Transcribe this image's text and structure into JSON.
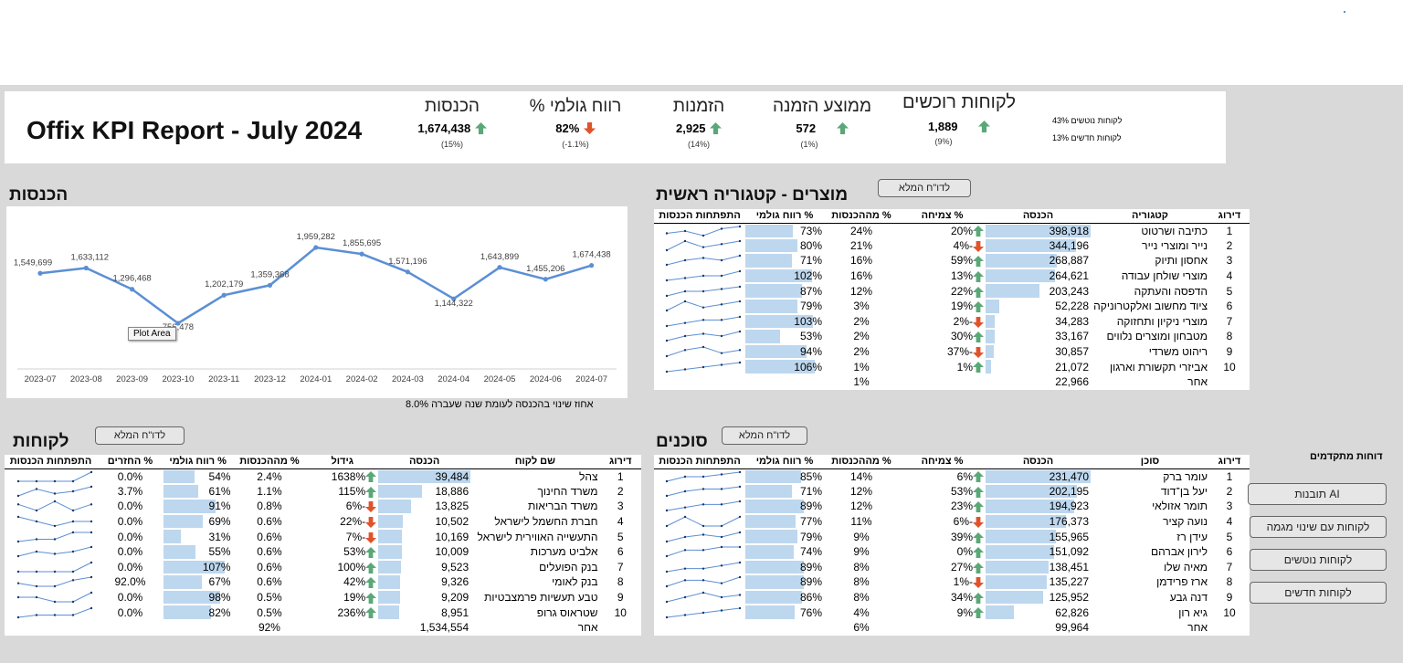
{
  "header": {
    "title": "Offix KPI Report - July 2024",
    "kpis": [
      {
        "title": "הכנסות",
        "value": "1,674,438",
        "sub": "(15%)",
        "trend": "up"
      },
      {
        "title": "% רווח גולמי",
        "value": "82%",
        "sub": "(-1.1%)",
        "trend": "down"
      },
      {
        "title": "הזמנות",
        "value": "2,925",
        "sub": "(14%)",
        "trend": "up"
      },
      {
        "title": "ממוצע הזמנה",
        "value": "572",
        "sub": "(1%)",
        "trend": "up"
      },
      {
        "title": "לקוחות רוכשים",
        "value": "1,889",
        "sub": "(9%)",
        "trend": "up"
      }
    ],
    "churn_label": "לקוחות נוטשים 43%",
    "new_label": "לקוחות חדשים 13%"
  },
  "revenue_chart": {
    "title": "הכנסות",
    "tooltip": "Plot Area",
    "footnote": "אחוז שינוי בהכנסה לעומת שנה שעברה 8.0%"
  },
  "chart_data": {
    "type": "line",
    "categories": [
      "2023-07",
      "2023-08",
      "2023-09",
      "2023-10",
      "2023-11",
      "2023-12",
      "2024-01",
      "2024-02",
      "2024-03",
      "2024-04",
      "2024-05",
      "2024-06",
      "2024-07"
    ],
    "values": [
      1549699,
      1633112,
      1296468,
      756478,
      1202179,
      1359368,
      1959282,
      1855695,
      1571196,
      1144322,
      1643899,
      1455206,
      1674438
    ],
    "data_labels": [
      "1,549,699",
      "1,633,112",
      "1,296,468",
      "756,478",
      "1,202,179",
      "1,359,368",
      "1,959,282",
      "1,855,695",
      "1,571,196",
      "1,144,322",
      "1,643,899",
      "1,455,206",
      "1,674,438"
    ],
    "line_color": "#5b8fd4",
    "grid": false
  },
  "products": {
    "title": "מוצרים - קטגוריה ראשית",
    "button": "לדו\"ח המלא",
    "headers": [
      "דירוג",
      "קטגוריה",
      "הכנסה",
      "% צמיחה",
      "% מההכנסות",
      "% רווח גולמי",
      "התפתחות הכנסות"
    ],
    "rows": [
      {
        "rank": "1",
        "name": "כתיבה ושרטוט",
        "rev": "398,918",
        "rev_n": 398918,
        "growth": "20%",
        "dir": "up",
        "share": "24%",
        "margin": "73%",
        "margin_n": 73,
        "spark": [
          3,
          4,
          2,
          5,
          6
        ]
      },
      {
        "rank": "2",
        "name": "נייר ומוצרי נייר",
        "rev": "344,196",
        "rev_n": 344196,
        "growth": "-4%",
        "dir": "down",
        "share": "21%",
        "margin": "80%",
        "margin_n": 80,
        "spark": [
          3,
          6,
          4,
          5,
          6
        ]
      },
      {
        "rank": "3",
        "name": "אחסון ותיוק",
        "rev": "268,887",
        "rev_n": 268887,
        "growth": "59%",
        "dir": "up",
        "share": "16%",
        "margin": "71%",
        "margin_n": 71,
        "spark": [
          2,
          4,
          5,
          4,
          6
        ]
      },
      {
        "rank": "4",
        "name": "מוצרי שולחן עבודה",
        "rev": "264,621",
        "rev_n": 264621,
        "growth": "13%",
        "dir": "up",
        "share": "16%",
        "margin": "102%",
        "margin_n": 102,
        "spark": [
          2,
          3,
          4,
          4,
          6
        ]
      },
      {
        "rank": "5",
        "name": "הדפסה והעתקה",
        "rev": "203,243",
        "rev_n": 203243,
        "growth": "22%",
        "dir": "up",
        "share": "12%",
        "margin": "87%",
        "margin_n": 87,
        "spark": [
          2,
          4,
          4,
          5,
          6
        ]
      },
      {
        "rank": "6",
        "name": "ציוד מחשוב ואלקטרוניקה",
        "rev": "52,228",
        "rev_n": 52228,
        "growth": "19%",
        "dir": "up",
        "share": "3%",
        "margin": "79%",
        "margin_n": 79,
        "spark": [
          3,
          6,
          4,
          5,
          6
        ]
      },
      {
        "rank": "7",
        "name": "מוצרי ניקיון ותחזוקה",
        "rev": "34,283",
        "rev_n": 34283,
        "growth": "-2%",
        "dir": "down",
        "share": "2%",
        "margin": "103%",
        "margin_n": 103,
        "spark": [
          3,
          4,
          5,
          5,
          6
        ]
      },
      {
        "rank": "8",
        "name": "מטבחון ומוצרים נלווים",
        "rev": "33,167",
        "rev_n": 33167,
        "growth": "30%",
        "dir": "up",
        "share": "2%",
        "margin": "53%",
        "margin_n": 53,
        "spark": [
          2,
          4,
          5,
          4,
          6
        ]
      },
      {
        "rank": "9",
        "name": "ריהוט משרדי",
        "rev": "30,857",
        "rev_n": 30857,
        "growth": "-37%",
        "dir": "down",
        "share": "2%",
        "margin": "94%",
        "margin_n": 94,
        "spark": [
          3,
          5,
          6,
          4,
          5
        ]
      },
      {
        "rank": "10",
        "name": "אביזרי תקשורת וארגון",
        "rev": "21,072",
        "rev_n": 21072,
        "growth": "1%",
        "dir": "up",
        "share": "1%",
        "margin": "106%",
        "margin_n": 106,
        "spark": [
          2,
          3,
          4,
          5,
          6
        ]
      }
    ],
    "other": {
      "name": "אחר",
      "rev": "22,966",
      "share": "1%"
    }
  },
  "customers": {
    "title": "לקוחות",
    "button": "לדו\"ח המלא",
    "headers": [
      "דירוג",
      "שם לקוח",
      "הכנסה",
      "גידול",
      "% מההכנסות",
      "% רווח גולמי",
      "% החזרים",
      "התפתחות הכנסות"
    ],
    "rows": [
      {
        "rank": "1",
        "name": "צהל",
        "rev": "39,484",
        "rev_n": 39484,
        "growth": "1638%",
        "dir": "up",
        "share": "2.4%",
        "margin": "54%",
        "margin_n": 54,
        "returns": "0.0%",
        "spark": [
          3,
          3,
          3,
          3,
          6
        ]
      },
      {
        "rank": "2",
        "name": "משרד החינוך",
        "rev": "18,886",
        "rev_n": 18886,
        "growth": "115%",
        "dir": "up",
        "share": "1.1%",
        "margin": "61%",
        "margin_n": 61,
        "returns": "3.7%",
        "spark": [
          2,
          5,
          3,
          4,
          6
        ]
      },
      {
        "rank": "3",
        "name": "משרד הבריאות",
        "rev": "13,825",
        "rev_n": 13825,
        "growth": "-6%",
        "dir": "down",
        "share": "0.8%",
        "margin": "91%",
        "margin_n": 91,
        "returns": "0.0%",
        "spark": [
          5,
          3,
          6,
          3,
          5
        ]
      },
      {
        "rank": "4",
        "name": "חברת החשמל לישראל",
        "rev": "10,502",
        "rev_n": 10502,
        "growth": "-22%",
        "dir": "down",
        "share": "0.6%",
        "margin": "69%",
        "margin_n": 69,
        "returns": "0.0%",
        "spark": [
          5,
          4,
          3,
          4,
          4
        ]
      },
      {
        "rank": "5",
        "name": "התעשייה האווירית לישראל",
        "rev": "10,169",
        "rev_n": 10169,
        "growth": "-7%",
        "dir": "down",
        "share": "0.6%",
        "margin": "31%",
        "margin_n": 31,
        "returns": "0.0%",
        "spark": [
          2,
          3,
          3,
          6,
          6
        ]
      },
      {
        "rank": "6",
        "name": "אלביט מערכות",
        "rev": "10,009",
        "rev_n": 10009,
        "growth": "53%",
        "dir": "up",
        "share": "0.6%",
        "margin": "55%",
        "margin_n": 55,
        "returns": "0.0%",
        "spark": [
          2,
          4,
          3,
          4,
          6
        ]
      },
      {
        "rank": "7",
        "name": "בנק הפועלים",
        "rev": "9,523",
        "rev_n": 9523,
        "growth": "100%",
        "dir": "up",
        "share": "0.6%",
        "margin": "107%",
        "margin_n": 107,
        "returns": "0.0%",
        "spark": [
          3,
          3,
          3,
          3,
          6
        ]
      },
      {
        "rank": "8",
        "name": "בנק לאומי",
        "rev": "9,326",
        "rev_n": 9326,
        "growth": "42%",
        "dir": "up",
        "share": "0.6%",
        "margin": "67%",
        "margin_n": 67,
        "returns": "92.0%",
        "spark": [
          4,
          3,
          3,
          5,
          6
        ]
      },
      {
        "rank": "9",
        "name": "טבע תעשיות פרמצבטיות",
        "rev": "9,209",
        "rev_n": 9209,
        "growth": "19%",
        "dir": "up",
        "share": "0.5%",
        "margin": "98%",
        "margin_n": 98,
        "returns": "0.0%",
        "spark": [
          4,
          4,
          3,
          3,
          5
        ]
      },
      {
        "rank": "10",
        "name": "שטראוס גרופ",
        "rev": "8,951",
        "rev_n": 8951,
        "growth": "236%",
        "dir": "up",
        "share": "0.5%",
        "margin": "82%",
        "margin_n": 82,
        "returns": "0.0%",
        "spark": [
          2,
          3,
          3,
          3,
          6
        ]
      }
    ],
    "other": {
      "name": "אחר",
      "rev": "1,534,554",
      "share": "92%"
    }
  },
  "agents": {
    "title": "סוכנים",
    "button": "לדו\"ח המלא",
    "headers": [
      "דירוג",
      "סוכן",
      "הכנסה",
      "% צמיחה",
      "% מההכנסות",
      "% רווח גולמי",
      "התפתחות הכנסות"
    ],
    "rows": [
      {
        "rank": "1",
        "name": "עומר ברק",
        "rev": "231,470",
        "rev_n": 231470,
        "growth": "6%",
        "dir": "up",
        "share": "14%",
        "margin": "85%",
        "margin_n": 85,
        "spark": [
          2,
          4,
          4,
          5,
          6
        ]
      },
      {
        "rank": "2",
        "name": "יעל בן־דוד",
        "rev": "202,195",
        "rev_n": 202195,
        "growth": "53%",
        "dir": "up",
        "share": "12%",
        "margin": "71%",
        "margin_n": 71,
        "spark": [
          2,
          4,
          5,
          5,
          6
        ]
      },
      {
        "rank": "3",
        "name": "תומר אזולאי",
        "rev": "194,923",
        "rev_n": 194923,
        "growth": "23%",
        "dir": "up",
        "share": "12%",
        "margin": "89%",
        "margin_n": 89,
        "spark": [
          3,
          4,
          5,
          5,
          6
        ]
      },
      {
        "rank": "4",
        "name": "נועה קציר",
        "rev": "176,373",
        "rev_n": 176373,
        "growth": "-6%",
        "dir": "down",
        "share": "11%",
        "margin": "77%",
        "margin_n": 77,
        "spark": [
          4,
          5,
          4,
          4,
          5
        ]
      },
      {
        "rank": "5",
        "name": "עידן רז",
        "rev": "155,965",
        "rev_n": 155965,
        "growth": "39%",
        "dir": "up",
        "share": "9%",
        "margin": "79%",
        "margin_n": 79,
        "spark": [
          2,
          4,
          5,
          4,
          6
        ]
      },
      {
        "rank": "6",
        "name": "לירון אברהם",
        "rev": "151,092",
        "rev_n": 151092,
        "growth": "0%",
        "dir": "up",
        "share": "9%",
        "margin": "74%",
        "margin_n": 74,
        "spark": [
          2,
          4,
          4,
          5,
          5
        ]
      },
      {
        "rank": "7",
        "name": "מאיה שלו",
        "rev": "138,451",
        "rev_n": 138451,
        "growth": "27%",
        "dir": "up",
        "share": "8%",
        "margin": "89%",
        "margin_n": 89,
        "spark": [
          3,
          4,
          4,
          5,
          6
        ]
      },
      {
        "rank": "8",
        "name": "ארז פרידמן",
        "rev": "135,227",
        "rev_n": 135227,
        "growth": "-1%",
        "dir": "down",
        "share": "8%",
        "margin": "89%",
        "margin_n": 89,
        "spark": [
          3,
          5,
          5,
          4,
          6
        ]
      },
      {
        "rank": "9",
        "name": "דנה גבע",
        "rev": "125,952",
        "rev_n": 125952,
        "growth": "34%",
        "dir": "up",
        "share": "8%",
        "margin": "86%",
        "margin_n": 86,
        "spark": [
          2,
          4,
          6,
          4,
          5
        ]
      },
      {
        "rank": "10",
        "name": "גיא רון",
        "rev": "62,826",
        "rev_n": 62826,
        "growth": "9%",
        "dir": "up",
        "share": "4%",
        "margin": "76%",
        "margin_n": 76,
        "spark": [
          2,
          3,
          4,
          5,
          6
        ]
      }
    ],
    "other": {
      "name": "אחר",
      "rev": "99,964",
      "share": "6%"
    }
  },
  "advanced": {
    "title": "דוחות מתקדמים",
    "buttons": [
      "תובנות AI",
      "לקוחות עם שינוי מגמה",
      "לקוחות נוטשים",
      "לקוחות חדשים"
    ]
  },
  "colors": {
    "up": "#5aa878",
    "down": "#e0532a",
    "bar": "#bdd7ee",
    "background": "#d9d9d9"
  }
}
